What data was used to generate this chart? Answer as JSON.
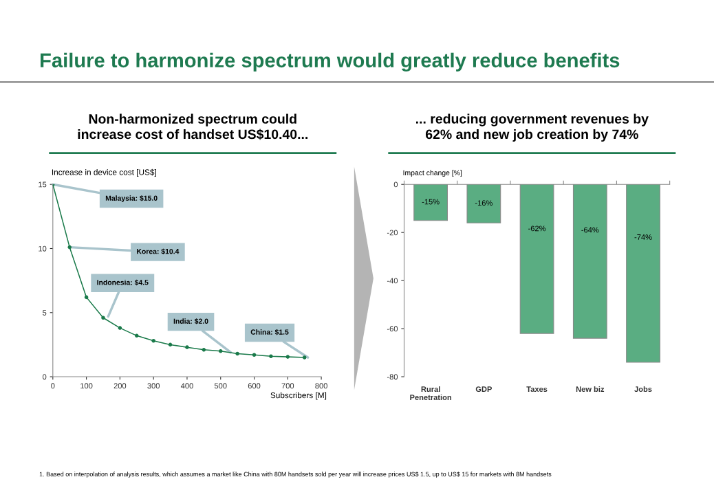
{
  "chart_data": [
    {
      "type": "line",
      "title": "Non-harmonized spectrum could\nincrease cost of handset US$10.40...",
      "ylabel": "Increase in device cost [US$]",
      "xlabel": "Subscribers [M]",
      "x": [
        0,
        50,
        100,
        150,
        200,
        250,
        300,
        350,
        400,
        450,
        500,
        550,
        600,
        650,
        700,
        750
      ],
      "series": [
        {
          "color": "#1a7a4a",
          "values": [
            15.0,
            10.1,
            6.2,
            4.6,
            3.8,
            3.2,
            2.8,
            2.5,
            2.3,
            2.1,
            2.0,
            1.8,
            1.7,
            1.6,
            1.55,
            1.5
          ]
        }
      ],
      "xlim": [
        0,
        800
      ],
      "xticks": [
        0,
        100,
        200,
        300,
        400,
        500,
        600,
        700,
        800
      ],
      "ylim": [
        0,
        15
      ],
      "yticks": [
        0,
        5,
        10,
        15
      ],
      "marker": "circle",
      "line_style": "solid",
      "annotations": [
        "Failure to harmonize spectrum would greatly reduce benefits",
        {
          "text": "Malaysia: $15.0",
          "x": 0,
          "y": 15.0
        },
        {
          "text": "Korea: $10.4",
          "x": 50,
          "y": 10.1
        },
        {
          "text": "Indonesia: $4.5",
          "x": 165,
          "y": 4.7
        },
        {
          "text": "India: $2.0",
          "x": 530,
          "y": 1.9
        },
        {
          "text": "China: $1.5",
          "x": 760,
          "y": 1.5
        },
        "1. Based on interpolation of analysis results, which assumes a market like China with 80M handsets sold per year will increase prices US$ 1.5, up to US$ 15 for markets with 8M handsets"
      ]
    },
    {
      "type": "bar",
      "title": "... reducing government revenues by\n62% and new job creation by 74%",
      "ylabel": "Impact change [%]",
      "categories": [
        "Rural\nPenetration",
        "GDP",
        "Taxes",
        "New biz",
        "Jobs"
      ],
      "values": [
        -15,
        -16,
        -62,
        -64,
        -74
      ],
      "value_labels": [
        "-15%",
        "-16%",
        "-62%",
        "-64%",
        "-74%"
      ],
      "color": "#5aad82",
      "ylim": [
        -80,
        0
      ],
      "yticks": [
        -80,
        -60,
        -40,
        -20,
        0
      ]
    }
  ]
}
